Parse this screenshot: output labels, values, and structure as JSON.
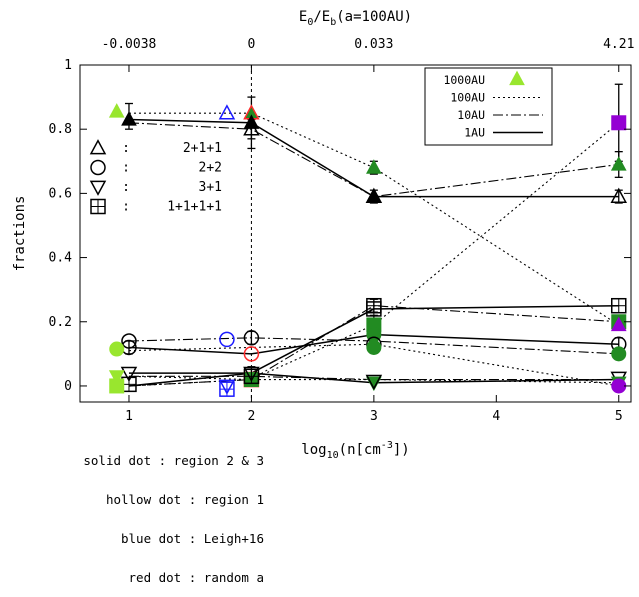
{
  "chart_data": {
    "type": "scatter",
    "xlabel": "log10(n[cm-3])",
    "ylabel": "fractions",
    "top_axis_label": "E0/Eb(a=100AU)",
    "xlim": [
      0.6,
      5.1
    ],
    "ylim": [
      -0.05,
      1.0
    ],
    "x_ticks": [
      "1",
      "2",
      "3",
      "4",
      "5"
    ],
    "y_ticks": [
      "0",
      "0.2",
      "0.4",
      "0.6",
      "0.8",
      "1"
    ],
    "top_ticks": [
      {
        "x": 1,
        "label": "-0.0038"
      },
      {
        "x": 2,
        "label": "0"
      },
      {
        "x": 3,
        "label": "0.033"
      },
      {
        "x": 5,
        "label": "4.21"
      }
    ],
    "vline_x": 2,
    "series": [
      {
        "name": "1AU",
        "dash": "none",
        "lines": [
          {
            "outcome": "2+1+1",
            "x": [
              1,
              2,
              3,
              5
            ],
            "y": [
              0.83,
              0.82,
              0.59,
              0.59
            ]
          },
          {
            "outcome": "2+2",
            "x": [
              1,
              2,
              3,
              5
            ],
            "y": [
              0.12,
              0.1,
              0.16,
              0.13
            ]
          },
          {
            "outcome": "3+1",
            "x": [
              1,
              2,
              3,
              5
            ],
            "y": [
              0.04,
              0.04,
              0.01,
              0.02
            ]
          },
          {
            "outcome": "1+1+1+1",
            "x": [
              1,
              2,
              3,
              5
            ],
            "y": [
              0.0,
              0.04,
              0.24,
              0.25
            ]
          }
        ]
      },
      {
        "name": "10AU",
        "dash": "10,3,2,3",
        "lines": [
          {
            "outcome": "2+1+1",
            "x": [
              1,
              2,
              3,
              5
            ],
            "y": [
              0.82,
              0.8,
              0.59,
              0.69
            ]
          },
          {
            "outcome": "2+2",
            "x": [
              1,
              2,
              3,
              5
            ],
            "y": [
              0.14,
              0.15,
              0.14,
              0.1
            ]
          },
          {
            "outcome": "3+1",
            "x": [
              1,
              2,
              3,
              5
            ],
            "y": [
              0.03,
              0.03,
              0.02,
              0.02
            ]
          },
          {
            "outcome": "1+1+1+1",
            "x": [
              1,
              2,
              3,
              5
            ],
            "y": [
              0.0,
              0.02,
              0.25,
              0.2
            ]
          }
        ]
      },
      {
        "name": "100AU",
        "dash": "2,3",
        "lines": [
          {
            "outcome": "2+1+1",
            "x": [
              1,
              2,
              3,
              5
            ],
            "y": [
              0.85,
              0.85,
              0.68,
              0.19
            ]
          },
          {
            "outcome": "2+2",
            "x": [
              1,
              2,
              3,
              5
            ],
            "y": [
              0.11,
              0.12,
              0.13,
              0.0
            ]
          },
          {
            "outcome": "3+1",
            "x": [
              1,
              2,
              3,
              5
            ],
            "y": [
              0.03,
              0.02,
              0.02,
              0.01
            ]
          },
          {
            "outcome": "1+1+1+1",
            "x": [
              1,
              2,
              3,
              5
            ],
            "y": [
              0.0,
              0.02,
              0.19,
              0.82
            ]
          }
        ]
      }
    ],
    "markers": [
      {
        "x": 1.0,
        "y": 0.83,
        "shape": "triangle-up",
        "filled": true,
        "color": "#000000"
      },
      {
        "x": 1.0,
        "y": 0.12,
        "shape": "circle",
        "filled": false,
        "color": "#000000"
      },
      {
        "x": 1.0,
        "y": 0.14,
        "shape": "circle",
        "filled": false,
        "color": "#000000"
      },
      {
        "x": 1.0,
        "y": 0.04,
        "shape": "triangle-down",
        "filled": false,
        "color": "#000000"
      },
      {
        "x": 1.0,
        "y": 0.005,
        "shape": "square",
        "filled": false,
        "color": "#000000"
      },
      {
        "x": 0.9,
        "y": 0.855,
        "shape": "triangle-up",
        "filled": true,
        "color": "#99e62e"
      },
      {
        "x": 0.9,
        "y": 0.115,
        "shape": "circle",
        "filled": true,
        "color": "#99e62e"
      },
      {
        "x": 0.9,
        "y": 0.03,
        "shape": "triangle-down",
        "filled": true,
        "color": "#99e62e"
      },
      {
        "x": 0.9,
        "y": 0.0,
        "shape": "square",
        "filled": true,
        "color": "#99e62e"
      },
      {
        "x": 1.8,
        "y": 0.85,
        "shape": "triangle-up",
        "filled": false,
        "color": "#1a1aff"
      },
      {
        "x": 1.8,
        "y": 0.145,
        "shape": "circle",
        "filled": false,
        "color": "#1a1aff"
      },
      {
        "x": 1.8,
        "y": 0.0,
        "shape": "triangle-down",
        "filled": false,
        "color": "#1a1aff"
      },
      {
        "x": 1.8,
        "y": -0.01,
        "shape": "square",
        "filled": false,
        "color": "#1a1aff"
      },
      {
        "x": 2.0,
        "y": 0.85,
        "shape": "triangle-up",
        "filled": true,
        "color": "#228b22"
      },
      {
        "x": 2.0,
        "y": 0.85,
        "shape": "triangle-up",
        "filled": false,
        "color": "#ff2a2a"
      },
      {
        "x": 2.0,
        "y": 0.1,
        "shape": "circle",
        "filled": false,
        "color": "#ff2a2a"
      },
      {
        "x": 2.0,
        "y": 0.02,
        "shape": "square",
        "filled": false,
        "color": "#ff2a2a"
      },
      {
        "x": 2.0,
        "y": 0.02,
        "shape": "square",
        "filled": true,
        "color": "#228b22"
      },
      {
        "x": 2.0,
        "y": 0.82,
        "shape": "triangle-up",
        "filled": true,
        "color": "#000000"
      },
      {
        "x": 2.0,
        "y": 0.8,
        "shape": "triangle-up",
        "filled": false,
        "color": "#000000"
      },
      {
        "x": 2.0,
        "y": 0.15,
        "shape": "circle",
        "filled": false,
        "color": "#000000"
      },
      {
        "x": 2.0,
        "y": 0.04,
        "shape": "triangle-down",
        "filled": false,
        "color": "#000000"
      },
      {
        "x": 2.0,
        "y": 0.03,
        "shape": "square",
        "filled": false,
        "color": "#000000"
      },
      {
        "x": 3.0,
        "y": 0.68,
        "shape": "triangle-up",
        "filled": true,
        "color": "#228b22"
      },
      {
        "x": 3.0,
        "y": 0.59,
        "shape": "triangle-up",
        "filled": false,
        "color": "#000000"
      },
      {
        "x": 3.0,
        "y": 0.59,
        "shape": "triangle-up",
        "filled": true,
        "color": "#000000"
      },
      {
        "x": 3.0,
        "y": 0.25,
        "shape": "square",
        "filled": false,
        "color": "#000000"
      },
      {
        "x": 3.0,
        "y": 0.24,
        "shape": "square",
        "filled": false,
        "color": "#000000"
      },
      {
        "x": 3.0,
        "y": 0.19,
        "shape": "square",
        "filled": true,
        "color": "#228b22"
      },
      {
        "x": 3.0,
        "y": 0.16,
        "shape": "circle",
        "filled": true,
        "color": "#228b22"
      },
      {
        "x": 3.0,
        "y": 0.13,
        "shape": "circle",
        "filled": false,
        "color": "#000000"
      },
      {
        "x": 3.0,
        "y": 0.12,
        "shape": "circle",
        "filled": true,
        "color": "#228b22"
      },
      {
        "x": 3.0,
        "y": 0.01,
        "shape": "triangle-down",
        "filled": true,
        "color": "#228b22"
      },
      {
        "x": 3.0,
        "y": 0.015,
        "shape": "triangle-down",
        "filled": false,
        "color": "#000000"
      },
      {
        "x": 5.0,
        "y": 0.82,
        "shape": "square",
        "filled": true,
        "color": "#9400d3"
      },
      {
        "x": 5.0,
        "y": 0.69,
        "shape": "triangle-up",
        "filled": true,
        "color": "#228b22"
      },
      {
        "x": 5.0,
        "y": 0.59,
        "shape": "triangle-up",
        "filled": false,
        "color": "#000000"
      },
      {
        "x": 5.0,
        "y": 0.25,
        "shape": "square",
        "filled": false,
        "color": "#000000"
      },
      {
        "x": 5.0,
        "y": 0.2,
        "shape": "square",
        "filled": true,
        "color": "#228b22"
      },
      {
        "x": 5.0,
        "y": 0.19,
        "shape": "triangle-up",
        "filled": true,
        "color": "#9400d3"
      },
      {
        "x": 5.0,
        "y": 0.13,
        "shape": "circle",
        "filled": false,
        "color": "#000000"
      },
      {
        "x": 5.0,
        "y": 0.1,
        "shape": "circle",
        "filled": true,
        "color": "#228b22"
      },
      {
        "x": 5.0,
        "y": 0.025,
        "shape": "triangle-down",
        "filled": false,
        "color": "#000000"
      },
      {
        "x": 5.0,
        "y": 0.01,
        "shape": "triangle-down",
        "filled": true,
        "color": "#228b22"
      },
      {
        "x": 5.0,
        "y": 0.0,
        "shape": "circle",
        "filled": true,
        "color": "#9400d3"
      }
    ],
    "error_bars": [
      {
        "x": 1.0,
        "y": 0.84,
        "err": 0.04
      },
      {
        "x": 1.0,
        "y": 0.12,
        "err": 0.02
      },
      {
        "x": 2.0,
        "y": 0.82,
        "err": 0.08
      },
      {
        "x": 2.0,
        "y": 0.8,
        "err": 0.03
      },
      {
        "x": 2.0,
        "y": 0.15,
        "err": 0.02
      },
      {
        "x": 2.0,
        "y": 0.04,
        "err": 0.02
      },
      {
        "x": 3.0,
        "y": 0.68,
        "err": 0.02
      },
      {
        "x": 3.0,
        "y": 0.59,
        "err": 0.02
      },
      {
        "x": 3.0,
        "y": 0.25,
        "err": 0.02
      },
      {
        "x": 3.0,
        "y": 0.19,
        "err": 0.03
      },
      {
        "x": 5.0,
        "y": 0.82,
        "err": 0.12
      },
      {
        "x": 5.0,
        "y": 0.69,
        "err": 0.04
      },
      {
        "x": 5.0,
        "y": 0.59,
        "err": 0.02
      },
      {
        "x": 5.0,
        "y": 0.13,
        "err": 0.02
      }
    ],
    "legend_lines": [
      {
        "label": "1000AU",
        "symbol": "triangle-up",
        "color": "#99e62e"
      },
      {
        "label": "100AU",
        "dash": "2,3"
      },
      {
        "label": "10AU",
        "dash": "10,3,2,3"
      },
      {
        "label": "1AU",
        "dash": "none"
      }
    ],
    "legend_lines_position": "top-right",
    "legend_shapes": [
      {
        "shape": "triangle-up",
        "sep": ":",
        "label": "2+1+1"
      },
      {
        "shape": "circle",
        "sep": ":",
        "label": "2+2"
      },
      {
        "shape": "triangle-down",
        "sep": ":",
        "label": "3+1"
      },
      {
        "shape": "square",
        "sep": ":",
        "label": "1+1+1+1"
      }
    ],
    "legend_shapes_position": "middle-left",
    "grid": false
  },
  "notes": [
    "solid dot : region 2 & 3",
    "hollow dot : region 1",
    "blue dot : Leigh+16",
    "red dot : random a"
  ]
}
